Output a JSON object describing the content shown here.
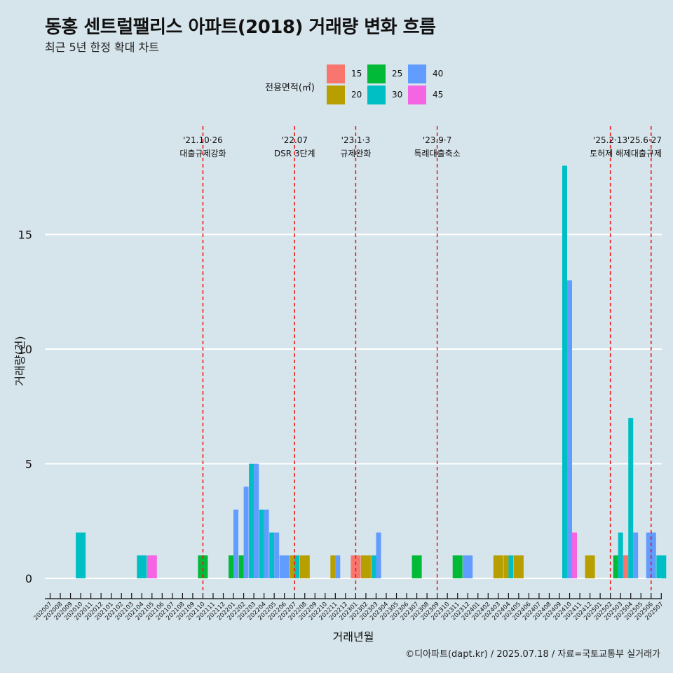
{
  "title": "동홍 센트럴팰리스 아파트(2018) 거래량 변화 흐름",
  "subtitle": "최근 5년 한정 확대 차트",
  "caption": "©디아파트(dapt.kr) / 2025.07.18 / 자료=국토교통부 실거래가",
  "colors": {
    "15": "#f8766d",
    "20": "#b79f00",
    "25": "#00ba38",
    "30": "#00bfc4",
    "40": "#619cff",
    "45": "#f564e3",
    "background": "#d6e4eb",
    "event_line": "#ee1111"
  },
  "chart_data": {
    "type": "bar",
    "xlabel": "거래년월",
    "ylabel": "거래량(건)",
    "ylim": [
      0,
      18
    ],
    "yticks": [
      0,
      5,
      10,
      15
    ],
    "grid": "horizontal",
    "legend": {
      "title": "전용면적(㎡)",
      "position": "top",
      "entries": [
        "15",
        "20",
        "25",
        "30",
        "40",
        "45"
      ]
    },
    "categories": [
      "202007",
      "202008",
      "202009",
      "202010",
      "202011",
      "202012",
      "202101",
      "202102",
      "202103",
      "202104",
      "202105",
      "202106",
      "202107",
      "202108",
      "202109",
      "202110",
      "202111",
      "202112",
      "202201",
      "202202",
      "202203",
      "202204",
      "202205",
      "202206",
      "202207",
      "202208",
      "202209",
      "202210",
      "202211",
      "202212",
      "202301",
      "202302",
      "202303",
      "202304",
      "202305",
      "202306",
      "202307",
      "202308",
      "202309",
      "202310",
      "202311",
      "202312",
      "202401",
      "202402",
      "202403",
      "202404",
      "202405",
      "202406",
      "202407",
      "202408",
      "202409",
      "202410",
      "202411",
      "202412",
      "202501",
      "202502",
      "202503",
      "202504",
      "202505",
      "202506",
      "202507"
    ],
    "bars": [
      {
        "month": "202010",
        "size": "30",
        "value": 2
      },
      {
        "month": "202104",
        "size": "30",
        "value": 1
      },
      {
        "month": "202105",
        "size": "45",
        "value": 1
      },
      {
        "month": "202110",
        "size": "25",
        "value": 1
      },
      {
        "month": "202201",
        "size": "25",
        "value": 1
      },
      {
        "month": "202201",
        "size": "40",
        "value": 3
      },
      {
        "month": "202202",
        "size": "25",
        "value": 1
      },
      {
        "month": "202202",
        "size": "40",
        "value": 4
      },
      {
        "month": "202203",
        "size": "30",
        "value": 5
      },
      {
        "month": "202203",
        "size": "40",
        "value": 5
      },
      {
        "month": "202204",
        "size": "30",
        "value": 3
      },
      {
        "month": "202204",
        "size": "40",
        "value": 3
      },
      {
        "month": "202205",
        "size": "30",
        "value": 2
      },
      {
        "month": "202205",
        "size": "40",
        "value": 2
      },
      {
        "month": "202206",
        "size": "40",
        "value": 1
      },
      {
        "month": "202207",
        "size": "20",
        "value": 1
      },
      {
        "month": "202207",
        "size": "30",
        "value": 1
      },
      {
        "month": "202208",
        "size": "20",
        "value": 1
      },
      {
        "month": "202211",
        "size": "20",
        "value": 1
      },
      {
        "month": "202211",
        "size": "40",
        "value": 1
      },
      {
        "month": "202301",
        "size": "15",
        "value": 1
      },
      {
        "month": "202302",
        "size": "20",
        "value": 1
      },
      {
        "month": "202303",
        "size": "30",
        "value": 1
      },
      {
        "month": "202303",
        "size": "40",
        "value": 2
      },
      {
        "month": "202307",
        "size": "25",
        "value": 1
      },
      {
        "month": "202311",
        "size": "25",
        "value": 1
      },
      {
        "month": "202312",
        "size": "40",
        "value": 1
      },
      {
        "month": "202403",
        "size": "20",
        "value": 1
      },
      {
        "month": "202404",
        "size": "20",
        "value": 1
      },
      {
        "month": "202404",
        "size": "30",
        "value": 1
      },
      {
        "month": "202405",
        "size": "20",
        "value": 1
      },
      {
        "month": "202410",
        "size": "30",
        "value": 18
      },
      {
        "month": "202410",
        "size": "40",
        "value": 13
      },
      {
        "month": "202410",
        "size": "45",
        "value": 2
      },
      {
        "month": "202412",
        "size": "20",
        "value": 1
      },
      {
        "month": "202503",
        "size": "25",
        "value": 1
      },
      {
        "month": "202503",
        "size": "30",
        "value": 2
      },
      {
        "month": "202503",
        "size": "40",
        "value": 1
      },
      {
        "month": "202504",
        "size": "15",
        "value": 1
      },
      {
        "month": "202504",
        "size": "30",
        "value": 7
      },
      {
        "month": "202504",
        "size": "40",
        "value": 2
      },
      {
        "month": "202506",
        "size": "40",
        "value": 2
      },
      {
        "month": "202507",
        "size": "30",
        "value": 1
      }
    ],
    "events": [
      {
        "month": "202110",
        "line1": "'21.10·26",
        "line2": "대출규제강화"
      },
      {
        "month": "202207",
        "line1": "'22.07",
        "line2": "DSR 3단계"
      },
      {
        "month": "202301",
        "line1": "'23.1·3",
        "line2": "규제완화"
      },
      {
        "month": "202309",
        "line1": "'23.9·7",
        "line2": "특례대출축소"
      },
      {
        "month": "202502",
        "line1": "'25.2·13",
        "line2": "토허제 해제"
      },
      {
        "month": "202506",
        "line1": "'25.6·27",
        "line2": "대출규제"
      }
    ]
  }
}
